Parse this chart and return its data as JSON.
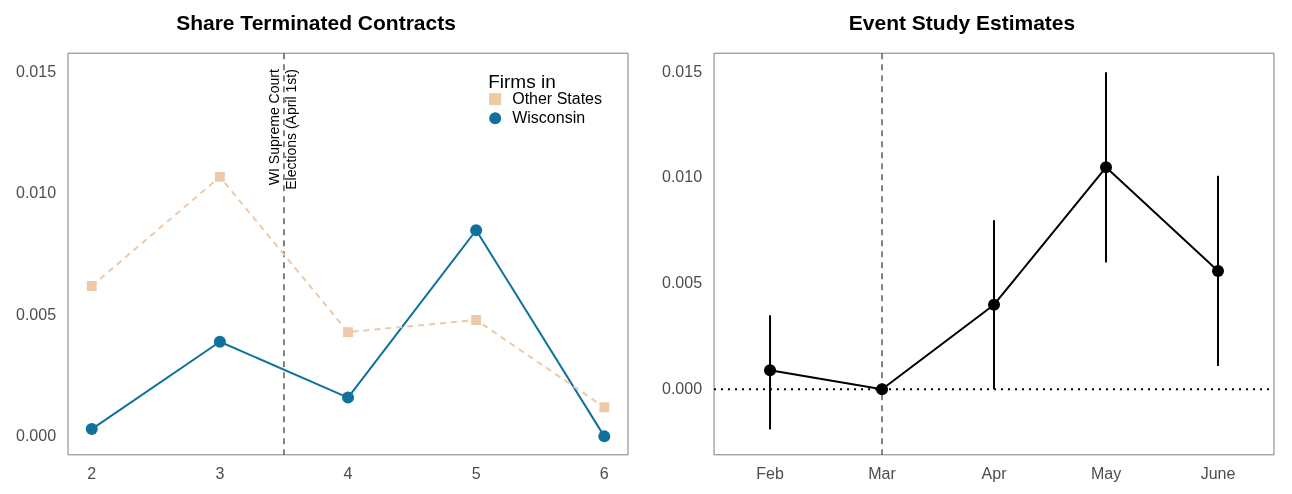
{
  "chart_data": [
    {
      "type": "line",
      "title": "Share Terminated Contracts",
      "x": [
        2,
        3,
        4,
        5,
        6
      ],
      "legend_title": "Firms in",
      "legend": "top right",
      "grid": false,
      "series": [
        {
          "name": "Other States",
          "color": "#edc9a8",
          "values": [
            0.0062,
            0.0107,
            0.0043,
            0.0048,
            0.0012
          ],
          "marker": "square",
          "line_style": "dashed"
        },
        {
          "name": "Wisconsin",
          "color": "#10729c",
          "values": [
            0.0003,
            0.0039,
            0.0016,
            0.0085,
            0.0
          ],
          "marker": "circle",
          "line_style": "solid"
        }
      ],
      "xlim": [
        1.815,
        6.185
      ],
      "xticks": [
        2,
        3,
        4,
        5,
        6
      ],
      "ylim": [
        -0.00076,
        0.0158
      ],
      "yticks": [
        {
          "value": 0,
          "label": "0.000"
        },
        {
          "value": 0.005,
          "label": "0.005"
        },
        {
          "value": 0.01,
          "label": "0.010"
        },
        {
          "value": 0.015,
          "label": "0.015"
        }
      ],
      "ref_lines": [
        {
          "axis": "x",
          "value": 3.5,
          "label": "WI Supreme Court\nElections (April 1st)",
          "line_style": "dashed",
          "color": "#333333"
        }
      ]
    },
    {
      "type": "line",
      "title": "Event Study Estimates",
      "categories": [
        "Feb",
        "Mar",
        "Apr",
        "May",
        "June"
      ],
      "grid": false,
      "legend": false,
      "marker": "circle",
      "line_style": "solid",
      "series": [
        {
          "color": "#000000",
          "values": [
            0.0009,
            0.0,
            0.004,
            0.0105,
            0.0056
          ],
          "errors": [
            [
              -0.0019,
              0.0035
            ],
            null,
            [
              0.0,
              0.008
            ],
            [
              0.006,
              0.015
            ],
            [
              0.0011,
              0.0101
            ]
          ]
        }
      ],
      "ylim": [
        -0.0031,
        0.0159
      ],
      "yticks": [
        {
          "value": 0,
          "label": "0.000"
        },
        {
          "value": 0.005,
          "label": "0.005"
        },
        {
          "value": 0.01,
          "label": "0.010"
        },
        {
          "value": 0.015,
          "label": "0.015"
        }
      ],
      "ref_lines": [
        {
          "axis": "y",
          "value": 0,
          "line_style": "dotted",
          "color": "#000000"
        },
        {
          "axis": "x",
          "value": "Mar",
          "line_style": "dashed",
          "color": "#333333"
        }
      ]
    }
  ]
}
